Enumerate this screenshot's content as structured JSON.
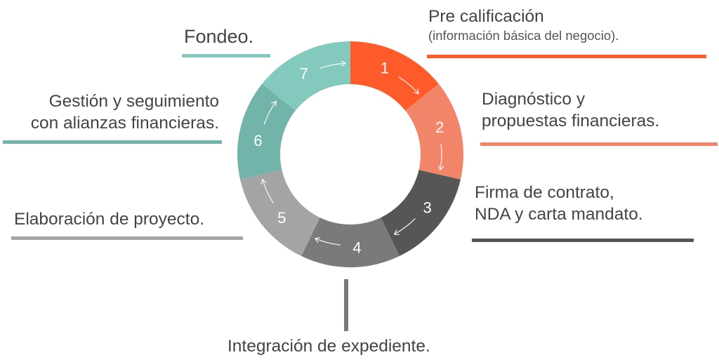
{
  "steps": [
    {
      "number": "1",
      "lines": [
        "Pre calificación"
      ],
      "sub": "(información básica del negocio).",
      "color": "#ff5a2a"
    },
    {
      "number": "2",
      "lines": [
        "Diagnóstico y",
        "propuestas financieras."
      ],
      "color": "#f2846a"
    },
    {
      "number": "3",
      "lines": [
        "Firma de contrato,",
        "NDA y carta mandato."
      ],
      "color": "#565656"
    },
    {
      "number": "4",
      "lines": [
        "Integración de expediente."
      ],
      "color": "#7a7a7a"
    },
    {
      "number": "5",
      "lines": [
        "Elaboración de proyecto."
      ],
      "color": "#a4a4a4"
    },
    {
      "number": "6",
      "lines": [
        "Gestión y seguimiento",
        "con alianzas financieras."
      ],
      "color": "#72b4aa"
    },
    {
      "number": "7",
      "lines": [
        "Fondeo."
      ],
      "color": "#84c9be"
    }
  ]
}
